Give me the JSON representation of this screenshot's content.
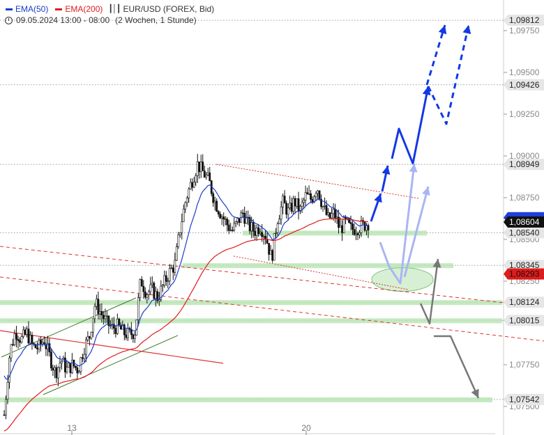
{
  "legend": {
    "ema50_label": "EMA(50)",
    "ema200_label": "EMA(200)",
    "instrument": "EUR/USD (FOREX, Bid)",
    "timestamp": "09.05.2024 13:00 - 08:00",
    "period": "(2 Wochen, 1 Stunde)",
    "ema50_color": "#1a3ccc",
    "ema200_color": "#e01b1b"
  },
  "chart_data": {
    "type": "candlestick",
    "y_range": [
      1.074,
      1.0995
    ],
    "y_ticks": [
      {
        "value": 1.075,
        "label": "1,07500"
      },
      {
        "value": 1.0775,
        "label": "1,07750"
      },
      {
        "value": 1.0825,
        "label": "1,08250"
      },
      {
        "value": 1.085,
        "label": "1,08500"
      },
      {
        "value": 1.0875,
        "label": "1,08750"
      },
      {
        "value": 1.09,
        "label": "1,09000"
      },
      {
        "value": 1.0925,
        "label": "1,09250"
      },
      {
        "value": 1.095,
        "label": "1,09500"
      },
      {
        "value": 1.0975,
        "label": "1,09750"
      }
    ],
    "x_ticks": [
      {
        "value": 13,
        "label": "13"
      },
      {
        "value": 20,
        "label": "20"
      }
    ],
    "levels": [
      {
        "value": 1.09812,
        "label": "1,09812"
      },
      {
        "value": 1.09426,
        "label": "1,09426"
      },
      {
        "value": 1.08949,
        "label": "1,08949"
      },
      {
        "value": 1.0854,
        "label": "1,08540"
      },
      {
        "value": 1.08345,
        "label": "1,08345"
      },
      {
        "value": 1.08124,
        "label": "1,08124"
      },
      {
        "value": 1.08015,
        "label": "1,08015"
      },
      {
        "value": 1.07542,
        "label": "1,07542"
      }
    ],
    "last_price": {
      "value": 1.08604,
      "label": "1,08604"
    },
    "ema50_last": {
      "value": 1.0863
    },
    "ema200_last": {
      "value": 1.08293,
      "label": "1,08293"
    },
    "series": [
      {
        "name": "EMA(50)",
        "color": "#1a3ccc"
      },
      {
        "name": "EMA(200)",
        "color": "#e01b1b"
      }
    ],
    "price_path": [
      1.0745,
      1.0783,
      1.0795,
      1.079,
      1.0794,
      1.0786,
      1.0785,
      1.079,
      1.078,
      1.077,
      1.0778,
      1.0772,
      1.0775,
      1.0772,
      1.0785,
      1.0792,
      1.0812,
      1.0806,
      1.08,
      1.0797,
      1.0798,
      1.0794,
      1.0793,
      1.0795,
      1.0826,
      1.0818,
      1.082,
      1.0815,
      1.0823,
      1.083,
      1.0835,
      1.0858,
      1.0875,
      1.0885,
      1.0895,
      1.089,
      1.0885,
      1.0873,
      1.0866,
      1.086,
      1.0855,
      1.086,
      1.0866,
      1.0858,
      1.0855,
      1.0858,
      1.0852,
      1.0838,
      1.0862,
      1.0872,
      1.0866,
      1.0873,
      1.0867,
      1.0876,
      1.0874,
      1.0882,
      1.087,
      1.0862,
      1.0866,
      1.0856,
      1.086,
      1.0856,
      1.0857,
      1.0858,
      1.086
    ]
  }
}
